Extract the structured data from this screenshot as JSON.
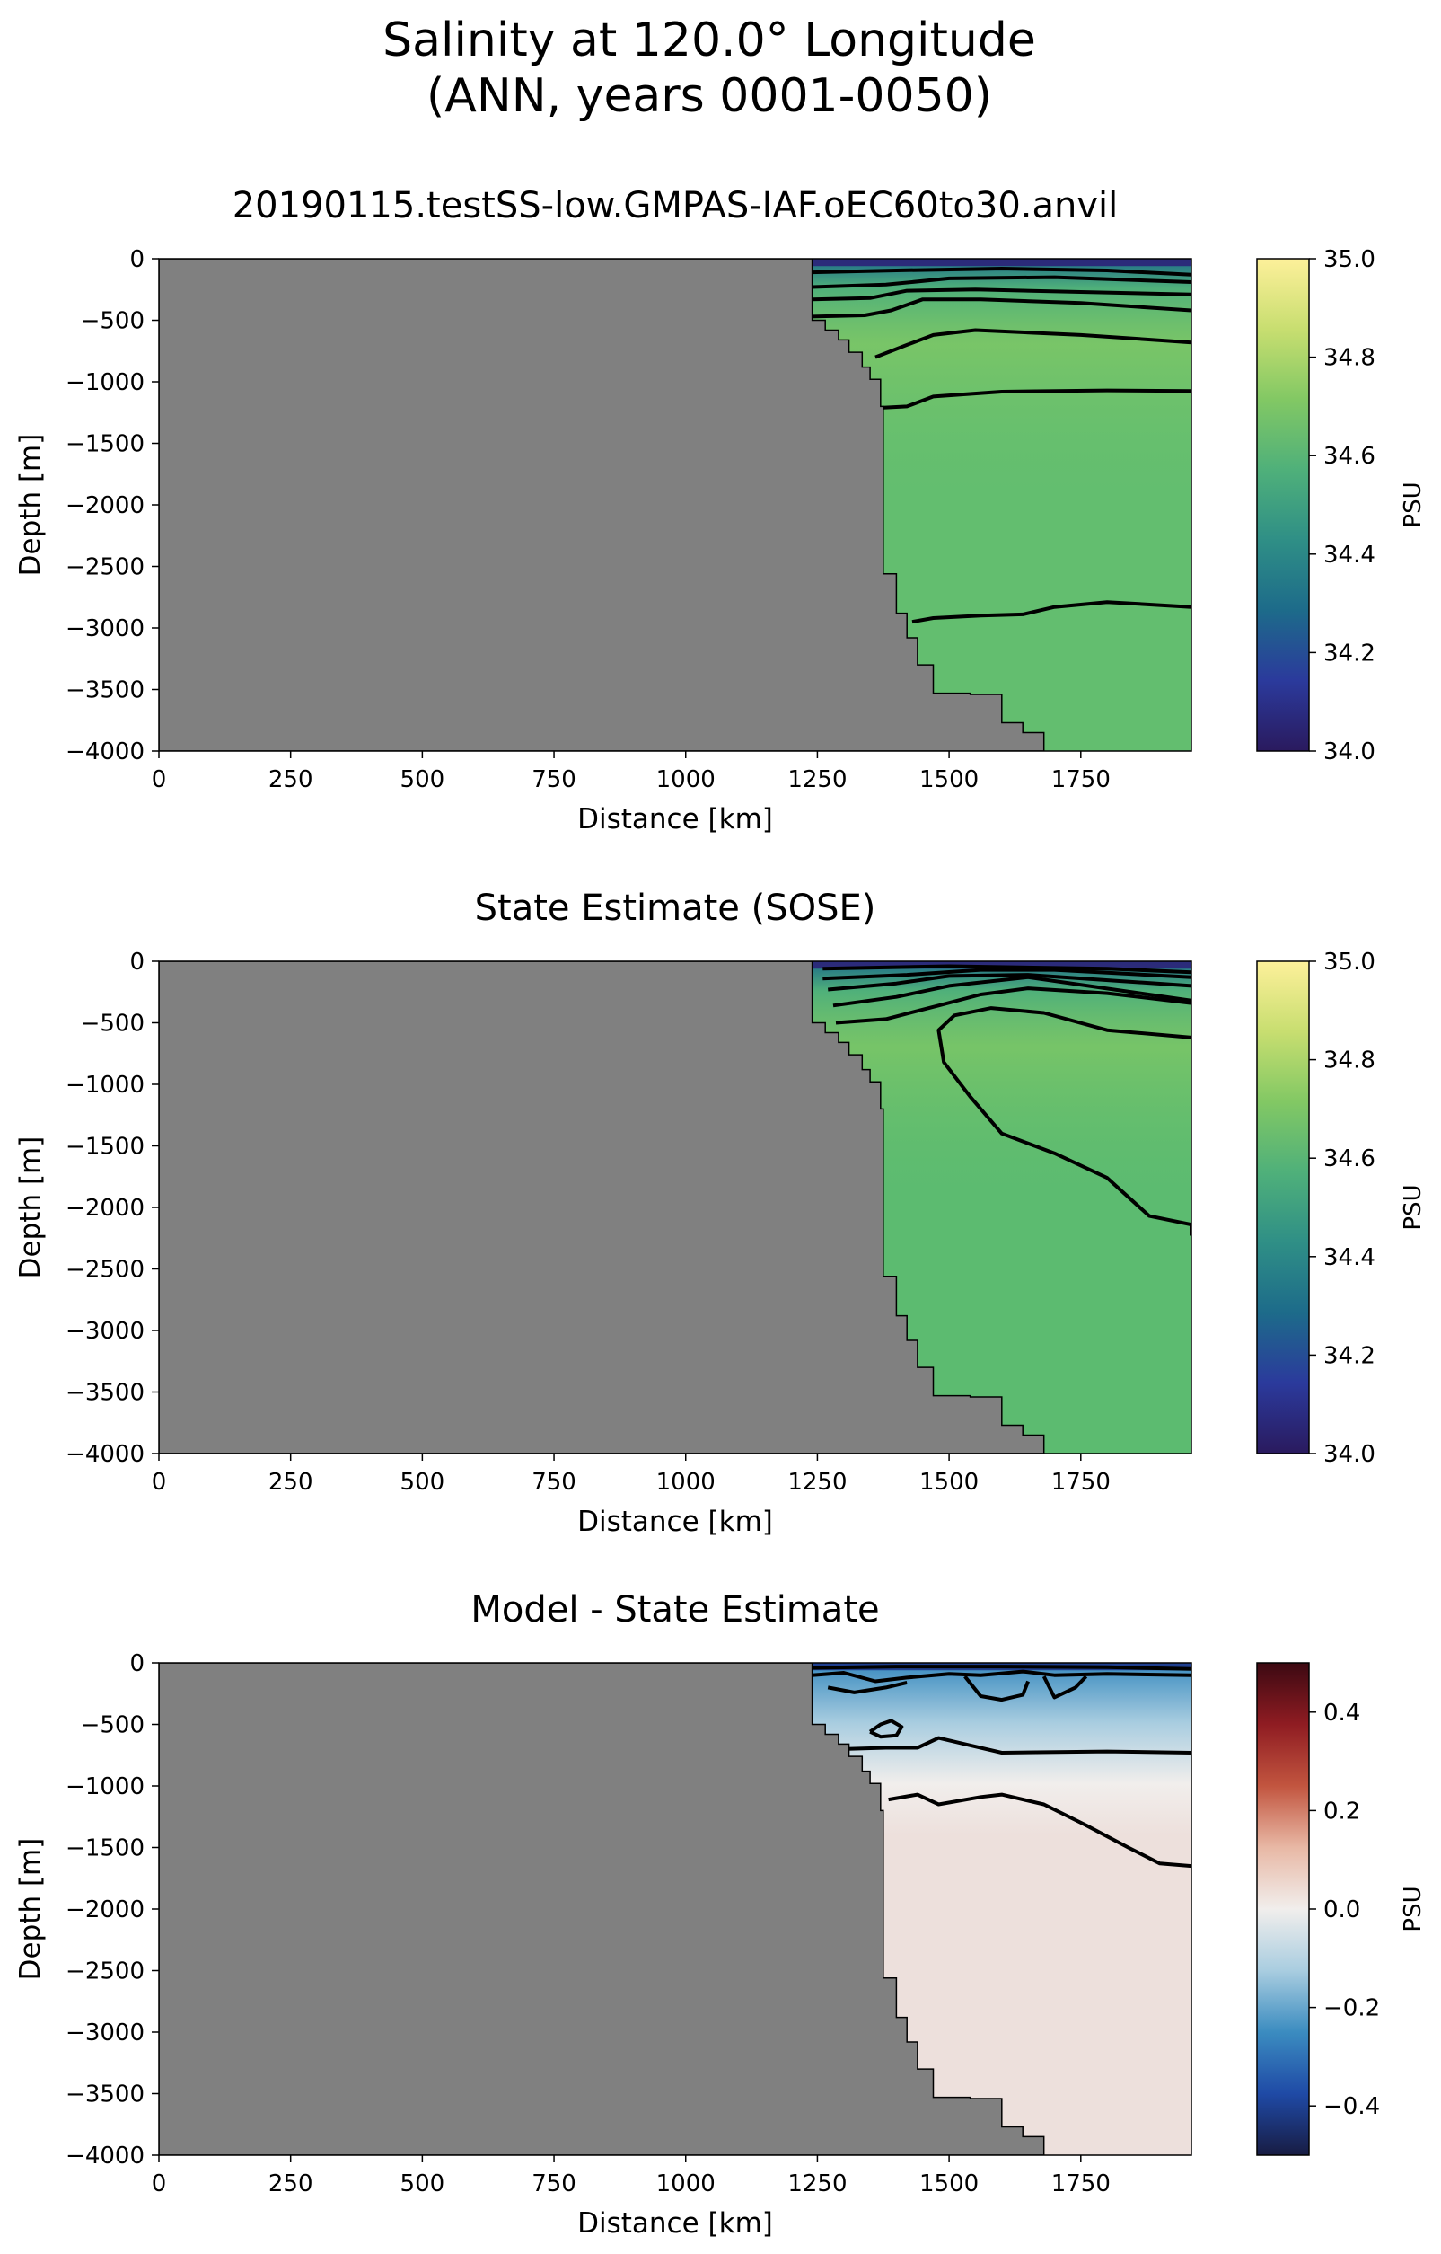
{
  "figure": {
    "title_line1": "Salinity at 120.0° Longitude",
    "title_line2": "(ANN, years 0001-0050)"
  },
  "chart_data": [
    {
      "type": "heatmap",
      "title": "20190115.testSS-low.GMPAS-IAF.oEC60to30.anvil",
      "xlabel": "Distance [km]",
      "ylabel": "Depth [m]",
      "xlim": [
        0,
        1960
      ],
      "ylim": [
        -4000,
        0
      ],
      "xticks": [
        "0",
        "250",
        "500",
        "750",
        "1000",
        "1250",
        "1500",
        "1750"
      ],
      "yticks": [
        "0",
        "−500",
        "−1000",
        "−1500",
        "−2000",
        "−2500",
        "−3000",
        "−3500",
        "−4000"
      ],
      "colorbar": {
        "label": "PSU",
        "range": [
          34.0,
          35.0
        ],
        "ticks": [
          "34.0",
          "34.2",
          "34.4",
          "34.6",
          "34.8",
          "35.0"
        ],
        "colormap": "haline",
        "colors": [
          "#2a1a5e",
          "#2b3a9c",
          "#1d6b8a",
          "#2f8f86",
          "#4fb07a",
          "#82c864",
          "#c8de70",
          "#fdf09a"
        ]
      },
      "land_color": "#808080",
      "background_fill": "#63be6f",
      "surface_layer_color": "#2b2b7a",
      "contour_color": "#000000"
    },
    {
      "type": "heatmap",
      "title": "State Estimate (SOSE)",
      "xlabel": "Distance [km]",
      "ylabel": "Depth [m]",
      "xlim": [
        0,
        1960
      ],
      "ylim": [
        -4000,
        0
      ],
      "xticks": [
        "0",
        "250",
        "500",
        "750",
        "1000",
        "1250",
        "1500",
        "1750"
      ],
      "yticks": [
        "0",
        "−500",
        "−1000",
        "−1500",
        "−2000",
        "−2500",
        "−3000",
        "−3500",
        "−4000"
      ],
      "colorbar": {
        "label": "PSU",
        "range": [
          34.0,
          35.0
        ],
        "ticks": [
          "34.0",
          "34.2",
          "34.4",
          "34.6",
          "34.8",
          "35.0"
        ],
        "colormap": "haline",
        "colors": [
          "#2a1a5e",
          "#2b3a9c",
          "#1d6b8a",
          "#2f8f86",
          "#4fb07a",
          "#82c864",
          "#c8de70",
          "#fdf09a"
        ]
      },
      "land_color": "#808080",
      "background_fill": "#5cbb70",
      "surface_layer_color": "#2b2b7a",
      "contour_color": "#000000"
    },
    {
      "type": "heatmap",
      "title": "Model - State Estimate",
      "xlabel": "Distance [km]",
      "ylabel": "Depth [m]",
      "xlim": [
        0,
        1960
      ],
      "ylim": [
        -4000,
        0
      ],
      "xticks": [
        "0",
        "250",
        "500",
        "750",
        "1000",
        "1250",
        "1500",
        "1750"
      ],
      "yticks": [
        "0",
        "−500",
        "−1000",
        "−1500",
        "−2000",
        "−2500",
        "−3000",
        "−3500",
        "−4000"
      ],
      "colorbar": {
        "label": "PSU",
        "range": [
          -0.5,
          0.5
        ],
        "ticks": [
          "−0.4",
          "−0.2",
          "0.0",
          "0.2",
          "0.4"
        ],
        "colormap": "balance",
        "colors": [
          "#181c43",
          "#1f4aa6",
          "#3b8cc0",
          "#a9cde0",
          "#f1eeec",
          "#e8b8a5",
          "#c2553f",
          "#8f1c22",
          "#3c0912"
        ]
      },
      "land_color": "#808080",
      "background_fill": "#ede0dc",
      "surface_layer_color": "#1f3f8f",
      "contour_color": "#000000"
    }
  ]
}
